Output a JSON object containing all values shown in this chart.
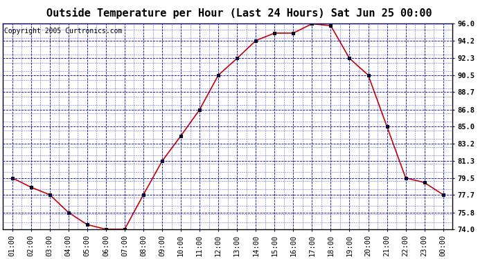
{
  "title": "Outside Temperature per Hour (Last 24 Hours) Sat Jun 25 00:00",
  "copyright": "Copyright 2005 Curtronics.com",
  "hours": [
    "01:00",
    "02:00",
    "03:00",
    "04:00",
    "05:00",
    "06:00",
    "07:00",
    "08:00",
    "09:00",
    "10:00",
    "11:00",
    "12:00",
    "13:00",
    "14:00",
    "15:00",
    "16:00",
    "17:00",
    "18:00",
    "19:00",
    "20:00",
    "21:00",
    "22:00",
    "23:00",
    "00:00"
  ],
  "temps": [
    79.5,
    78.5,
    77.7,
    75.8,
    74.5,
    74.0,
    74.0,
    77.7,
    81.3,
    84.0,
    86.8,
    90.5,
    92.3,
    94.2,
    95.0,
    95.0,
    96.0,
    95.8,
    92.3,
    90.5,
    85.0,
    79.5,
    79.0,
    77.7
  ],
  "ylim": [
    74.0,
    96.0
  ],
  "yticks": [
    74.0,
    75.8,
    77.7,
    79.5,
    81.3,
    83.2,
    85.0,
    86.8,
    88.7,
    90.5,
    92.3,
    94.2,
    96.0
  ],
  "line_color": "#cc0000",
  "marker_color": "#000000",
  "bg_color": "#ffffff",
  "plot_bg_color": "#ffffff",
  "grid_color_major": "#0000bb",
  "grid_color_minor": "#0000bb",
  "title_fontsize": 11,
  "tick_fontsize": 7.5,
  "copyright_fontsize": 7
}
